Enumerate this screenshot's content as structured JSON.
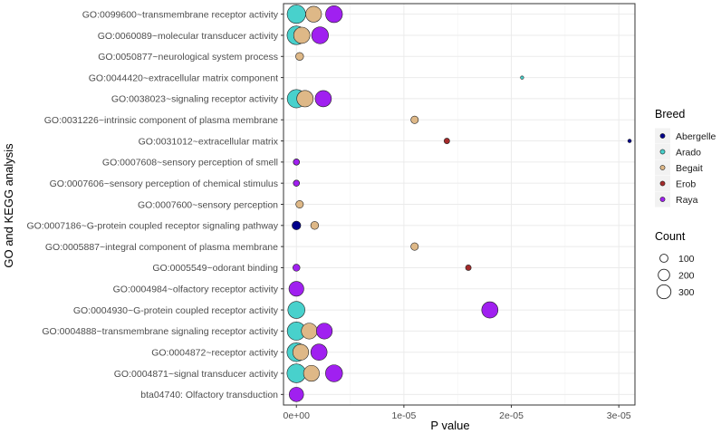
{
  "chart_data": {
    "type": "scatter",
    "subtype": "bubble",
    "xlabel": "P value",
    "ylabel": "GO and KEGG analysis",
    "xlim": [
      -1.2e-06,
      3.15e-05
    ],
    "xticks": [
      0,
      1e-05,
      2e-05,
      3e-05
    ],
    "xtick_labels": [
      "0e+00",
      "1e-05",
      "2e-05",
      "3e-05"
    ],
    "grid": true,
    "categories": [
      "GO:0099600~transmembrane receptor activity",
      "GO:0060089~molecular transducer activity",
      "GO:0050877~neurological system process",
      "GO:0044420~extracellular matrix component",
      "GO:0038023~signaling receptor activity",
      "GO:0031226~intrinsic component of plasma membrane",
      "GO:0031012~extracellular matrix",
      "GO:0007608~sensory perception of smell",
      "GO:0007606~sensory perception of chemical stimulus",
      "GO:0007600~sensory perception",
      "GO:0007186~G-protein coupled receptor signaling pathway",
      "GO:0005887~integral component of plasma membrane",
      "GO:0005549~odorant binding",
      "GO:0004984~olfactory receptor activity",
      "GO:0004930~G-protein coupled receptor activity",
      "GO:0004888~transmembrane signaling receptor activity",
      "GO:0004872~receptor activity",
      "GO:0004871~signal transducer activity",
      "bta04740: Olfactory transduction"
    ],
    "legend": {
      "color_title": "Breed",
      "size_title": "Count",
      "size_values": [
        100,
        200,
        300
      ]
    },
    "series": [
      {
        "name": "Abergelle",
        "color": "#00008b",
        "points": [
          {
            "category": "GO:0031012~extracellular matrix",
            "p": 3.1e-05,
            "count": 10
          },
          {
            "category": "GO:0007186~G-protein coupled receptor signaling pathway",
            "p": 0,
            "count": 60
          }
        ]
      },
      {
        "name": "Arado",
        "color": "#48d1cc",
        "points": [
          {
            "category": "GO:0099600~transmembrane receptor activity",
            "p": 0,
            "count": 270
          },
          {
            "category": "GO:0060089~molecular transducer activity",
            "p": 0,
            "count": 275
          },
          {
            "category": "GO:0044420~extracellular matrix component",
            "p": 2.1e-05,
            "count": 5
          },
          {
            "category": "GO:0038023~signaling receptor activity",
            "p": 0,
            "count": 265
          },
          {
            "category": "GO:0004930~G-protein coupled receptor activity",
            "p": 0,
            "count": 230
          },
          {
            "category": "GO:0004888~transmembrane signaling receptor activity",
            "p": 0,
            "count": 265
          },
          {
            "category": "GO:0004872~receptor activity",
            "p": 0,
            "count": 280
          },
          {
            "category": "GO:0004871~signal transducer activity",
            "p": 0,
            "count": 280
          }
        ]
      },
      {
        "name": "Begait",
        "color": "#deb887",
        "points": [
          {
            "category": "GO:0099600~transmembrane receptor activity",
            "p": 1.6e-06,
            "count": 200
          },
          {
            "category": "GO:0060089~molecular transducer activity",
            "p": 5e-07,
            "count": 210
          },
          {
            "category": "GO:0050877~neurological system process",
            "p": 3e-07,
            "count": 50
          },
          {
            "category": "GO:0038023~signaling receptor activity",
            "p": 8e-07,
            "count": 215
          },
          {
            "category": "GO:0031226~intrinsic component of plasma membrane",
            "p": 1.1e-05,
            "count": 45
          },
          {
            "category": "GO:0007608~sensory perception of smell",
            "p": 0,
            "count": 30
          },
          {
            "category": "GO:0007606~sensory perception of chemical stimulus",
            "p": 0,
            "count": 30
          },
          {
            "category": "GO:0007600~sensory perception",
            "p": 3e-07,
            "count": 45
          },
          {
            "category": "GO:0007186~G-protein coupled receptor signaling pathway",
            "p": 1.7e-06,
            "count": 50
          },
          {
            "category": "GO:0005887~integral component of plasma membrane",
            "p": 1.1e-05,
            "count": 45
          },
          {
            "category": "GO:0004888~transmembrane signaling receptor activity",
            "p": 1.2e-06,
            "count": 200
          },
          {
            "category": "GO:0004872~receptor activity",
            "p": 4e-07,
            "count": 200
          },
          {
            "category": "GO:0004871~signal transducer activity",
            "p": 1.4e-06,
            "count": 200
          }
        ]
      },
      {
        "name": "Erob",
        "color": "#a52a2a",
        "points": [
          {
            "category": "GO:0031012~extracellular matrix",
            "p": 1.4e-05,
            "count": 25
          },
          {
            "category": "GO:0005549~odorant binding",
            "p": 1.6e-05,
            "count": 25
          }
        ]
      },
      {
        "name": "Raya",
        "color": "#a020f0",
        "points": [
          {
            "category": "GO:0099600~transmembrane receptor activity",
            "p": 3.5e-06,
            "count": 225
          },
          {
            "category": "GO:0060089~molecular transducer activity",
            "p": 2.2e-06,
            "count": 225
          },
          {
            "category": "GO:0038023~signaling receptor activity",
            "p": 2.5e-06,
            "count": 210
          },
          {
            "category": "GO:0007608~sensory perception of smell",
            "p": 0,
            "count": 30
          },
          {
            "category": "GO:0007606~sensory perception of chemical stimulus",
            "p": 0,
            "count": 30
          },
          {
            "category": "GO:0005549~odorant binding",
            "p": 0,
            "count": 40
          },
          {
            "category": "GO:0004984~olfactory receptor activity",
            "p": 0,
            "count": 175
          },
          {
            "category": "GO:0004930~G-protein coupled receptor activity",
            "p": 1.8e-05,
            "count": 210
          },
          {
            "category": "GO:0004888~transmembrane signaling receptor activity",
            "p": 2.6e-06,
            "count": 200
          },
          {
            "category": "GO:0004872~receptor activity",
            "p": 2.1e-06,
            "count": 210
          },
          {
            "category": "GO:0004871~signal transducer activity",
            "p": 3.5e-06,
            "count": 230
          },
          {
            "category": "bta04740: Olfactory transduction",
            "p": 0,
            "count": 165
          }
        ]
      }
    ]
  }
}
